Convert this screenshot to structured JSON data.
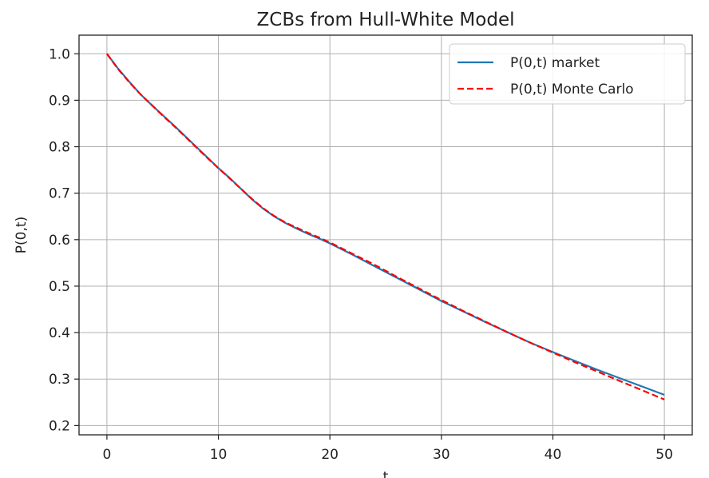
{
  "chart_data": {
    "type": "line",
    "title": "ZCBs from Hull-White Model",
    "xlabel": "t",
    "ylabel": "P(0,t)",
    "xlim": [
      -2.5,
      52.5
    ],
    "ylim": [
      0.18,
      1.04
    ],
    "xticks": [
      0,
      10,
      20,
      30,
      40,
      50
    ],
    "yticks": [
      0.2,
      0.3,
      0.4,
      0.5,
      0.6,
      0.7,
      0.8,
      0.9,
      1.0
    ],
    "xtick_labels": [
      "0",
      "10",
      "20",
      "30",
      "40",
      "50"
    ],
    "ytick_labels": [
      "0.2",
      "0.3",
      "0.4",
      "0.5",
      "0.6",
      "0.7",
      "0.8",
      "0.9",
      "1.0"
    ],
    "grid": true,
    "legend_position": "top-right",
    "series": [
      {
        "name": "P(0,t) market",
        "color": "#1f77b4",
        "style": "solid",
        "x": [
          0,
          1,
          2,
          3,
          4,
          5,
          6,
          7,
          8,
          9,
          10,
          11,
          12,
          13,
          14,
          15,
          16,
          17,
          18,
          19,
          20,
          22,
          24,
          26,
          28,
          30,
          32,
          34,
          36,
          38,
          40,
          42,
          44,
          46,
          48,
          50
        ],
        "y": [
          1.0,
          0.968,
          0.94,
          0.913,
          0.89,
          0.868,
          0.846,
          0.823,
          0.8,
          0.777,
          0.754,
          0.733,
          0.71,
          0.687,
          0.667,
          0.65,
          0.636,
          0.624,
          0.613,
          0.603,
          0.592,
          0.568,
          0.543,
          0.518,
          0.493,
          0.468,
          0.445,
          0.422,
          0.4,
          0.378,
          0.358,
          0.339,
          0.32,
          0.302,
          0.284,
          0.266
        ]
      },
      {
        "name": "P(0,t) Monte Carlo",
        "color": "#ff0000",
        "style": "dashed",
        "x": [
          0,
          1,
          2,
          3,
          4,
          5,
          6,
          7,
          8,
          9,
          10,
          11,
          12,
          13,
          14,
          15,
          16,
          17,
          18,
          19,
          20,
          22,
          24,
          26,
          28,
          30,
          32,
          34,
          36,
          38,
          40,
          42,
          44,
          46,
          48,
          50
        ],
        "y": [
          1.0,
          0.967,
          0.939,
          0.913,
          0.89,
          0.867,
          0.845,
          0.822,
          0.799,
          0.776,
          0.754,
          0.732,
          0.71,
          0.688,
          0.668,
          0.651,
          0.637,
          0.626,
          0.615,
          0.605,
          0.594,
          0.57,
          0.546,
          0.52,
          0.495,
          0.47,
          0.446,
          0.423,
          0.4,
          0.378,
          0.357,
          0.336,
          0.316,
          0.296,
          0.276,
          0.256
        ]
      }
    ]
  }
}
